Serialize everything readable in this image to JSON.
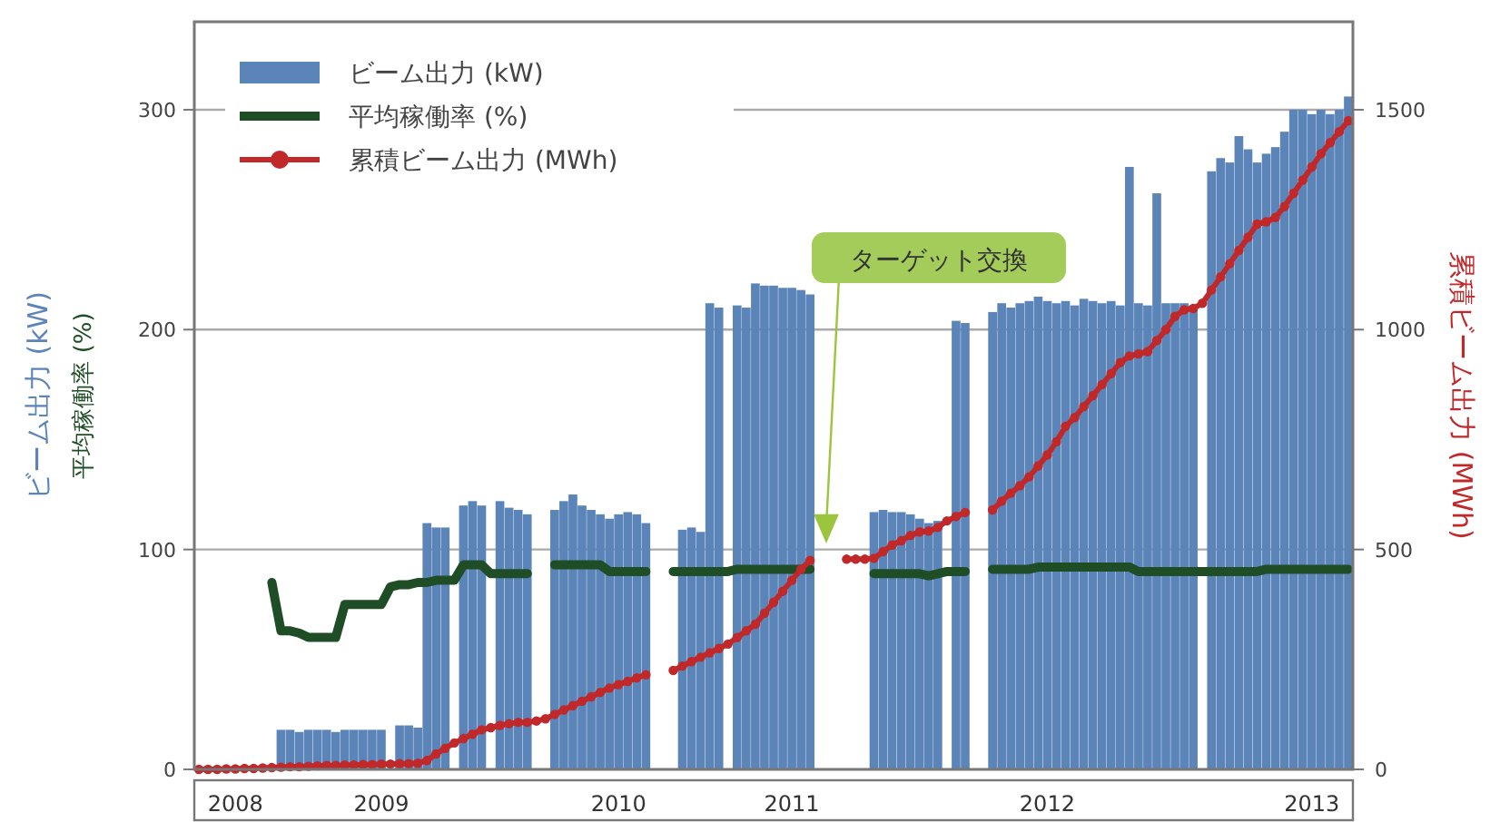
{
  "chart_data": {
    "type": "bar",
    "ylabel": "ビーム出力 (kW)",
    "y2label": "累積ビーム出力 (MWh)",
    "annotations": [
      "平均稼働率 (%)",
      "ターゲット交換"
    ],
    "categories": [
      null,
      null,
      null,
      null,
      "2008",
      null,
      null,
      null,
      null,
      null,
      null,
      null,
      null,
      null,
      null,
      null,
      null,
      null,
      null,
      null,
      "2009",
      null,
      null,
      null,
      null,
      null,
      null,
      null,
      null,
      null,
      null,
      null,
      null,
      null,
      null,
      null,
      null,
      null,
      null,
      null,
      null,
      null,
      null,
      null,
      null,
      null,
      "2010",
      null,
      null,
      null,
      null,
      null,
      null,
      null,
      null,
      null,
      null,
      null,
      null,
      null,
      null,
      null,
      null,
      null,
      null,
      "2011",
      null,
      null,
      null,
      null,
      null,
      null,
      null,
      null,
      null,
      null,
      null,
      null,
      null,
      null,
      null,
      null,
      null,
      null,
      null,
      null,
      null,
      null,
      null,
      null,
      null,
      null,
      null,
      "2012",
      null,
      null,
      null,
      null,
      null,
      null,
      null,
      null,
      null,
      null,
      null,
      null,
      null,
      null,
      null,
      null,
      null,
      null,
      null,
      null,
      null,
      null,
      null,
      null,
      null,
      null,
      null,
      null,
      "2013",
      null,
      null,
      null,
      null
    ],
    "series": [
      {
        "name": "ビーム出力 (kW)",
        "color": "#5b84b8",
        "values": [
          null,
          null,
          null,
          null,
          null,
          null,
          null,
          null,
          null,
          18,
          18,
          17,
          18,
          18,
          18,
          17,
          18,
          18,
          18,
          18,
          18,
          null,
          20,
          20,
          19,
          112,
          110,
          110,
          null,
          120,
          122,
          120,
          null,
          122,
          119,
          118,
          116,
          null,
          null,
          118,
          122,
          125,
          120,
          118,
          116,
          114,
          116,
          117,
          116,
          112,
          null,
          null,
          null,
          109,
          110,
          108,
          212,
          210,
          null,
          211,
          210,
          221,
          220,
          220,
          219,
          219,
          218,
          216,
          null,
          null,
          null,
          null,
          null,
          null,
          117,
          118,
          117,
          117,
          116,
          114,
          112,
          113,
          null,
          204,
          203,
          null,
          null,
          208,
          212,
          210,
          212,
          213,
          215,
          213,
          212,
          213,
          211,
          214,
          213,
          212,
          213,
          211,
          274,
          212,
          211,
          262,
          212,
          212,
          212,
          211,
          null,
          272,
          278,
          276,
          288,
          282,
          276,
          280,
          283,
          290,
          300,
          300,
          298,
          300,
          298,
          300,
          306
        ]
      },
      {
        "name": "平均稼働率 (%)",
        "type": "line",
        "color": "#1f4d26",
        "marker": "none",
        "values": [
          null,
          null,
          null,
          null,
          null,
          null,
          null,
          null,
          85,
          63,
          63,
          62,
          60,
          60,
          60,
          60,
          75,
          75,
          75,
          75,
          75,
          83,
          84,
          84,
          85,
          85,
          86,
          86,
          86,
          93,
          93,
          93,
          89,
          89,
          89,
          89,
          89,
          null,
          null,
          93,
          93,
          93,
          93,
          93,
          93,
          90,
          90,
          90,
          90,
          90,
          null,
          null,
          90,
          90,
          90,
          90,
          90,
          90,
          90,
          91,
          91,
          91,
          91,
          91,
          91,
          91,
          91,
          91,
          null,
          null,
          null,
          null,
          null,
          null,
          89,
          89,
          89,
          89,
          89,
          89,
          88,
          89,
          90,
          90,
          90,
          null,
          null,
          91,
          91,
          91,
          91,
          91,
          92,
          92,
          92,
          92,
          92,
          92,
          92,
          92,
          92,
          92,
          92,
          90,
          90,
          90,
          90,
          90,
          90,
          90,
          90,
          90,
          90,
          90,
          90,
          90,
          90,
          91,
          91,
          91,
          91,
          91,
          91,
          91,
          91,
          91,
          91
        ]
      },
      {
        "name": "累積ビーム出力 (MWh)",
        "type": "line",
        "axis": "y2",
        "color": "#c0282a",
        "marker": "circle",
        "values": [
          0,
          0,
          0,
          1,
          1,
          2,
          2,
          3,
          4,
          5,
          6,
          6,
          7,
          8,
          9,
          9,
          10,
          10,
          11,
          11,
          12,
          12,
          13,
          13,
          14,
          20,
          35,
          48,
          60,
          70,
          80,
          90,
          95,
          100,
          104,
          107,
          107,
          110,
          115,
          125,
          135,
          145,
          155,
          165,
          175,
          185,
          193,
          200,
          208,
          215,
          null,
          null,
          225,
          235,
          245,
          255,
          265,
          275,
          285,
          300,
          315,
          330,
          355,
          380,
          405,
          430,
          455,
          475,
          null,
          null,
          null,
          478,
          478,
          478,
          480,
          495,
          510,
          520,
          532,
          540,
          542,
          550,
          565,
          575,
          584,
          null,
          null,
          590,
          610,
          628,
          645,
          665,
          690,
          715,
          745,
          780,
          800,
          825,
          850,
          875,
          900,
          925,
          940,
          945,
          950,
          975,
          1000,
          1030,
          1045,
          1048,
          1060,
          1090,
          1120,
          1150,
          1180,
          1210,
          1240,
          1245,
          1255,
          1280,
          1310,
          1340,
          1370,
          1400,
          1425,
          1450,
          1475
        ]
      }
    ],
    "ylim": [
      0,
      340
    ],
    "yticks": [
      0,
      100,
      200,
      300
    ],
    "y2lim": [
      0,
      1700
    ],
    "y2ticks": [
      0,
      500,
      1000,
      1500
    ],
    "grid": "y",
    "legend": "top left",
    "line_style": "solid"
  }
}
